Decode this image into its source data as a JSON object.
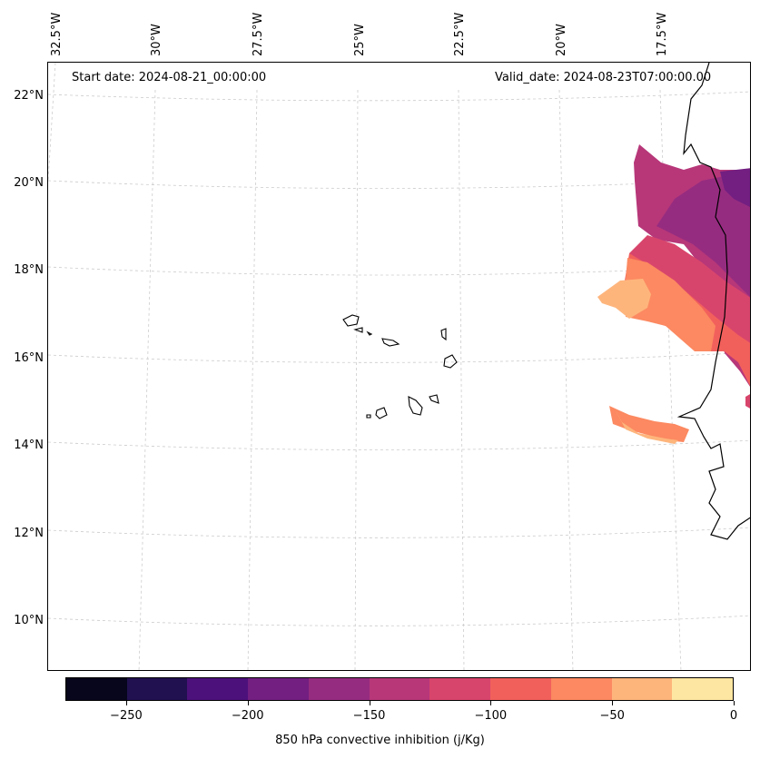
{
  "header": {
    "start_date": "Start date: 2024-08-21_00:00:00",
    "valid_date": "Valid_date: 2024-08-23T07:00:00.00"
  },
  "axes": {
    "longitude_labels": [
      "32.5°W",
      "30°W",
      "27.5°W",
      "25°W",
      "22.5°W",
      "20°W",
      "17.5°W"
    ],
    "latitude_labels": [
      "22°N",
      "20°N",
      "18°N",
      "16°N",
      "14°N",
      "12°N",
      "10°N"
    ]
  },
  "colorbar": {
    "title": "850 hPa convective inhibition (j/Kg)",
    "tick_labels": [
      "−250",
      "−200",
      "−150",
      "−100",
      "−50",
      "0"
    ],
    "levels": [
      -275,
      -250,
      -225,
      -200,
      -175,
      -150,
      -125,
      -100,
      -75,
      -50,
      -25,
      0
    ],
    "colors": [
      "#07061c",
      "#221150",
      "#4d117b",
      "#721f81",
      "#962c80",
      "#b73779",
      "#d8456c",
      "#f2605c",
      "#fc8961",
      "#feb57c",
      "#fde6a1"
    ]
  },
  "map": {
    "gridlines": "dashed light gray",
    "features": [
      "Cape Verde islands",
      "West African coastline"
    ]
  }
}
